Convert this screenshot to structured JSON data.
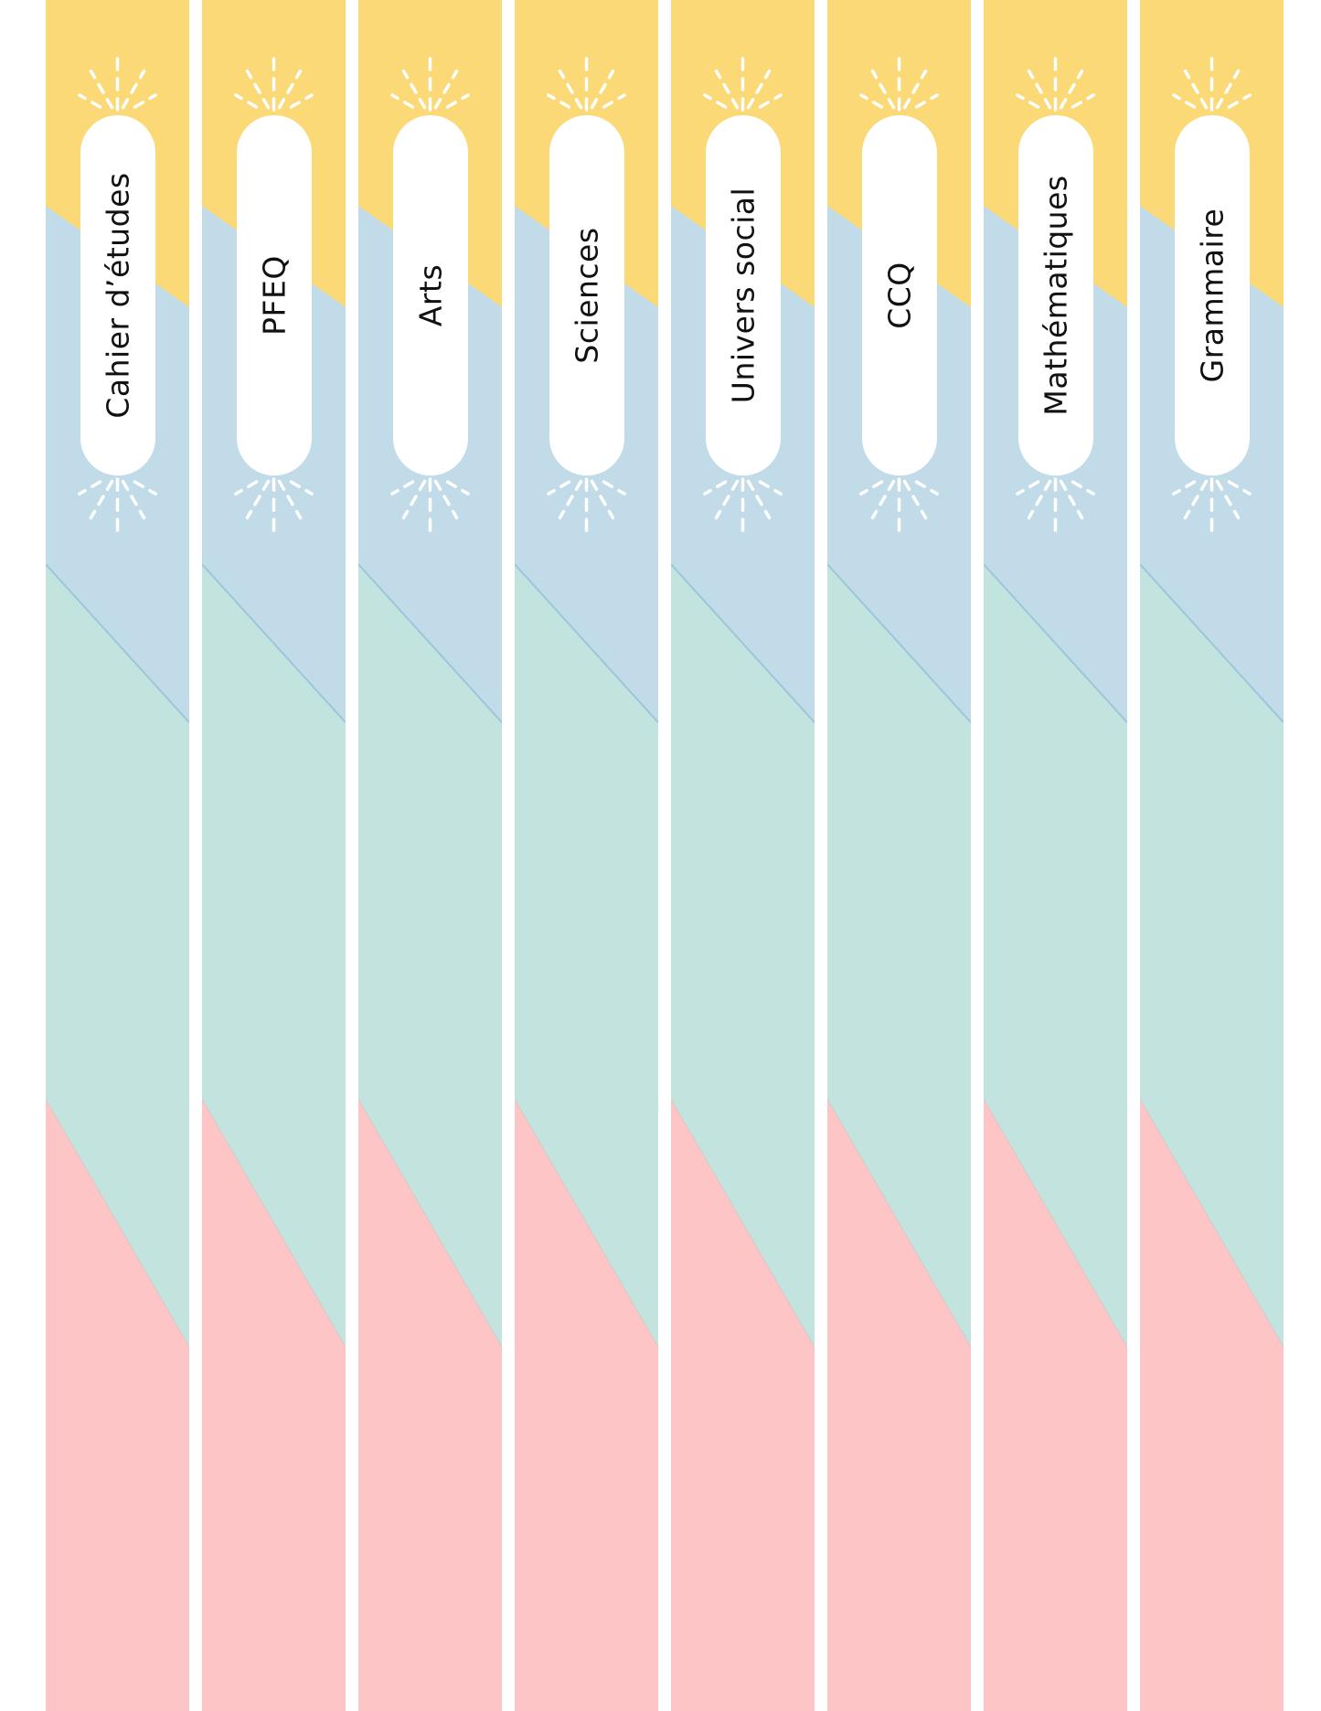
{
  "labels": [
    "Cahier d’études",
    "PFEQ",
    "Arts",
    "Sciences",
    "Univers social",
    "CCQ",
    "Mathématiques",
    "Grammaire"
  ],
  "icons": {
    "top": "sunburst-rays-icon",
    "bottom": "sunburst-rays-icon"
  },
  "colors": {
    "yellow": "#fbd977",
    "blue": "#c2dbe8",
    "blue_edge": "#9cc6dc",
    "green": "#c3e3df",
    "pink": "#fdc5c6",
    "pill": "#ffffff",
    "text": "#111111"
  }
}
